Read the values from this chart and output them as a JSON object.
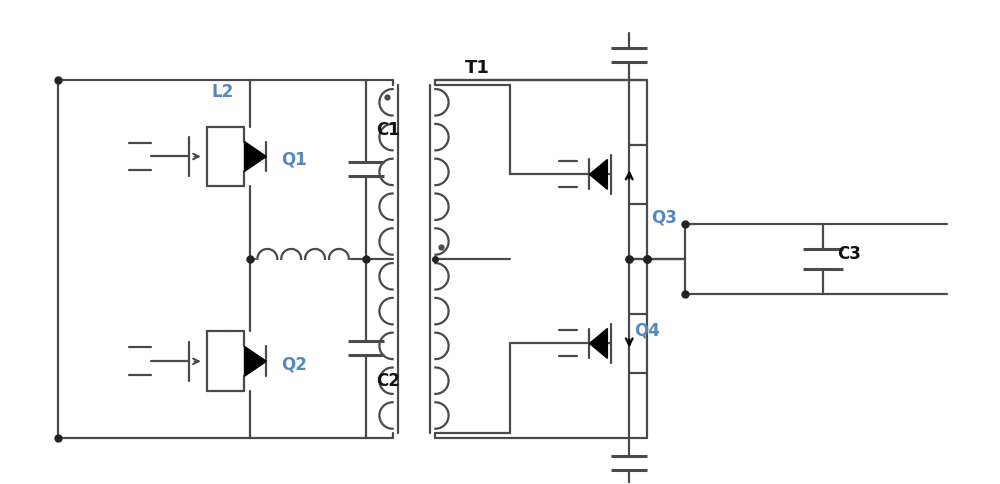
{
  "figsize": [
    10.0,
    4.84
  ],
  "dpi": 100,
  "lc": "#4a4a4a",
  "lw": 1.6,
  "lw_cap": 2.2,
  "dc": "#222222",
  "blue": "#5588bb",
  "black": "#111111",
  "fs": 12,
  "bg": "#ffffff",
  "xlim": [
    0,
    10
  ],
  "ylim": [
    0,
    4.84
  ]
}
